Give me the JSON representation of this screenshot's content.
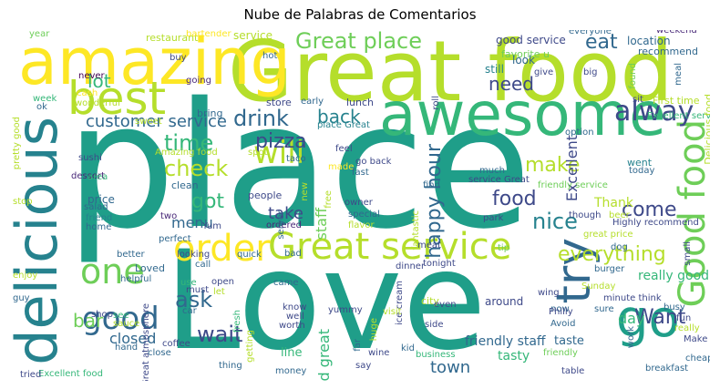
{
  "title": "Nube de Palabras de Comentarios",
  "palette": [
    "#fde725",
    "#b5de2b",
    "#6ece58",
    "#35b779",
    "#1f9e89",
    "#26828e",
    "#31688e",
    "#3e4989",
    "#482878",
    "#440154"
  ],
  "words": [
    {
      "text": "place",
      "color": "#1f9e89"
    },
    {
      "text": "Love",
      "color": "#1f9e89"
    },
    {
      "text": "Great food",
      "color": "#b5de2b"
    },
    {
      "text": "amazing",
      "color": "#fde725"
    },
    {
      "text": "awesome",
      "color": "#35b779"
    },
    {
      "text": "best",
      "color": "#b5de2b"
    },
    {
      "text": "delicious",
      "color": "#26828e"
    },
    {
      "text": "Great service",
      "color": "#b5de2b"
    },
    {
      "text": "order",
      "color": "#fde725"
    },
    {
      "text": "go",
      "color": "#1f9e89"
    },
    {
      "text": "try",
      "color": "#31688e"
    },
    {
      "text": "Good food",
      "color": "#6ece58"
    },
    {
      "text": "one",
      "color": "#6ece58"
    },
    {
      "text": "good",
      "color": "#31688e"
    },
    {
      "text": "alway",
      "color": "#3e4989"
    },
    {
      "text": "Great place",
      "color": "#6ece58"
    },
    {
      "text": "will",
      "color": "#b5de2b"
    },
    {
      "text": "check",
      "color": "#b5de2b"
    },
    {
      "text": "time",
      "color": "#35b779"
    },
    {
      "text": "drink",
      "color": "#31688e"
    },
    {
      "text": "pizza",
      "color": "#3e4989"
    },
    {
      "text": "back",
      "color": "#26828e"
    },
    {
      "text": "customer service",
      "color": "#31688e"
    },
    {
      "text": "eat",
      "color": "#31688e"
    },
    {
      "text": "need",
      "color": "#3e4989"
    },
    {
      "text": "lot",
      "color": "#35b779"
    },
    {
      "text": "got",
      "color": "#35b779"
    },
    {
      "text": "make",
      "color": "#b5de2b"
    },
    {
      "text": "food",
      "color": "#3e4989"
    },
    {
      "text": "come",
      "color": "#3e4989"
    },
    {
      "text": "nice",
      "color": "#26828e"
    },
    {
      "text": "happy hour",
      "color": "#31688e"
    },
    {
      "text": "everything",
      "color": "#b5de2b"
    },
    {
      "text": "Want",
      "color": "#3e4989"
    },
    {
      "text": "ask",
      "color": "#31688e"
    },
    {
      "text": "wait",
      "color": "#3e4989"
    },
    {
      "text": "menu",
      "color": "#31688e"
    },
    {
      "text": "take",
      "color": "#3e4989"
    },
    {
      "text": "staff",
      "color": "#6ece58"
    },
    {
      "text": "bar",
      "color": "#6ece58"
    },
    {
      "text": "day",
      "color": "#35b779"
    },
    {
      "text": "closed",
      "color": "#31688e"
    },
    {
      "text": "town",
      "color": "#31688e"
    },
    {
      "text": "Excellent",
      "color": "#3e4989"
    },
    {
      "text": "Thank",
      "color": "#b5de2b"
    },
    {
      "text": "really good",
      "color": "#35b779"
    },
    {
      "text": "food great",
      "color": "#35b779"
    },
    {
      "text": "friendly staff",
      "color": "#31688e"
    },
    {
      "text": "tasty",
      "color": "#35b779"
    },
    {
      "text": "taste",
      "color": "#31688e"
    },
    {
      "text": "restaurant",
      "color": "#b5de2b"
    },
    {
      "text": "service",
      "color": "#b5de2b"
    },
    {
      "text": "bartender",
      "color": "#fde725"
    },
    {
      "text": "year",
      "color": "#6ece58"
    },
    {
      "text": "good service",
      "color": "#3e4989"
    },
    {
      "text": "favorite u",
      "color": "#6ece58"
    },
    {
      "text": "everyone",
      "color": "#31688e"
    },
    {
      "text": "weekend",
      "color": "#482878"
    },
    {
      "text": "location",
      "color": "#31688e"
    },
    {
      "text": "recommend",
      "color": "#31688e"
    },
    {
      "text": "look",
      "color": "#31688e"
    },
    {
      "text": "still",
      "color": "#26828e"
    },
    {
      "text": "give",
      "color": "#3e4989"
    },
    {
      "text": "big",
      "color": "#3e4989"
    },
    {
      "text": "found",
      "color": "#6ece58"
    },
    {
      "text": "meal",
      "color": "#31688e"
    },
    {
      "text": "First time",
      "color": "#b5de2b"
    },
    {
      "text": "sit",
      "color": "#3e4989"
    },
    {
      "text": "buy",
      "color": "#3e4989"
    },
    {
      "text": "hot",
      "color": "#31688e"
    },
    {
      "text": "never",
      "color": "#440154"
    },
    {
      "text": "cash",
      "color": "#fde725"
    },
    {
      "text": "wonderful",
      "color": "#b5de2b"
    },
    {
      "text": "going",
      "color": "#482878"
    },
    {
      "text": "week",
      "color": "#35b779"
    },
    {
      "text": "ok",
      "color": "#31688e"
    },
    {
      "text": "store",
      "color": "#3e4989"
    },
    {
      "text": "early",
      "color": "#31688e"
    },
    {
      "text": "lunch",
      "color": "#3e4989"
    },
    {
      "text": "place Great",
      "color": "#26828e"
    },
    {
      "text": "roll",
      "color": "#3e4989"
    },
    {
      "text": "bring",
      "color": "#31688e"
    },
    {
      "text": "sweet",
      "color": "#b5de2b"
    },
    {
      "text": "Amazing food",
      "color": "#b5de2b"
    },
    {
      "text": "sushi",
      "color": "#3e4989"
    },
    {
      "text": "dessert",
      "color": "#482878"
    },
    {
      "text": "area",
      "color": "#35b779"
    },
    {
      "text": "clean",
      "color": "#31688e"
    },
    {
      "text": "price",
      "color": "#31688e"
    },
    {
      "text": "salad",
      "color": "#31688e"
    },
    {
      "text": "friend",
      "color": "#26828e"
    },
    {
      "text": "home",
      "color": "#31688e"
    },
    {
      "text": "two",
      "color": "#482878"
    },
    {
      "text": "perfect",
      "color": "#31688e"
    },
    {
      "text": "Yum",
      "color": "#3e4989"
    },
    {
      "text": "spot",
      "color": "#b5de2b"
    },
    {
      "text": "taco",
      "color": "#31688e"
    },
    {
      "text": "people",
      "color": "#3e4989"
    },
    {
      "text": "ordered",
      "color": "#482878"
    },
    {
      "text": "go back",
      "color": "#3e4989"
    },
    {
      "text": "made",
      "color": "#fde725"
    },
    {
      "text": "fast",
      "color": "#31688e"
    },
    {
      "text": "feel",
      "color": "#3e4989"
    },
    {
      "text": "owner",
      "color": "#3e4989"
    },
    {
      "text": "special",
      "color": "#31688e"
    },
    {
      "text": "flavor",
      "color": "#b5de2b"
    },
    {
      "text": "much",
      "color": "#31688e"
    },
    {
      "text": "find",
      "color": "#31688e"
    },
    {
      "text": "park",
      "color": "#3e4989"
    },
    {
      "text": "friendly service",
      "color": "#6ece58"
    },
    {
      "text": "service Great",
      "color": "#3e4989"
    },
    {
      "text": "though",
      "color": "#3e4989"
    },
    {
      "text": "beer",
      "color": "#b5de2b"
    },
    {
      "text": "Highly recommend",
      "color": "#3e4989"
    },
    {
      "text": "today",
      "color": "#31688e"
    },
    {
      "text": "went",
      "color": "#26828e"
    },
    {
      "text": "dog",
      "color": "#31688e"
    },
    {
      "text": "burger",
      "color": "#31688e"
    },
    {
      "text": "great price",
      "color": "#b5de2b"
    },
    {
      "text": "Excellent service",
      "color": "#35b779"
    },
    {
      "text": "Delicious food",
      "color": "#b5de2b"
    },
    {
      "text": "small",
      "color": "#3e4989"
    },
    {
      "text": "now",
      "color": "#31688e"
    },
    {
      "text": "option",
      "color": "#31688e"
    },
    {
      "text": "better",
      "color": "#31688e"
    },
    {
      "text": "Loved",
      "color": "#31688e"
    },
    {
      "text": "helpful",
      "color": "#31688e"
    },
    {
      "text": "looking",
      "color": "#3e4989"
    },
    {
      "text": "quick",
      "color": "#31688e"
    },
    {
      "text": "call",
      "color": "#31688e"
    },
    {
      "text": "bad",
      "color": "#31688e"
    },
    {
      "text": "meat",
      "color": "#3e4989"
    },
    {
      "text": "tip",
      "color": "#6ece58"
    },
    {
      "text": "dinner",
      "color": "#3e4989"
    },
    {
      "text": "ice cream",
      "color": "#3e4989"
    },
    {
      "text": "open",
      "color": "#3e4989"
    },
    {
      "text": "let",
      "color": "#b5de2b"
    },
    {
      "text": "use",
      "color": "#35b779"
    },
    {
      "text": "must",
      "color": "#3e4989"
    },
    {
      "text": "came",
      "color": "#31688e"
    },
    {
      "text": "yummy",
      "color": "#3e4989"
    },
    {
      "text": "city",
      "color": "#b5de2b"
    },
    {
      "text": "even",
      "color": "#3e4989"
    },
    {
      "text": "around",
      "color": "#3e4989"
    },
    {
      "text": "Sunday",
      "color": "#b5de2b"
    },
    {
      "text": "wing",
      "color": "#3e4989"
    },
    {
      "text": "minute think",
      "color": "#3e4989"
    },
    {
      "text": "sure",
      "color": "#31688e"
    },
    {
      "text": "busy",
      "color": "#31688e"
    },
    {
      "text": "Philly",
      "color": "#3e4989"
    },
    {
      "text": "Avoid",
      "color": "#31688e"
    },
    {
      "text": "fun",
      "color": "#3e4989"
    },
    {
      "text": "really",
      "color": "#b5de2b"
    },
    {
      "text": "cheap",
      "color": "#31688e"
    },
    {
      "text": "Make sure",
      "color": "#3e4989"
    },
    {
      "text": "breakfast",
      "color": "#31688e"
    },
    {
      "text": "table",
      "color": "#3e4989"
    },
    {
      "text": "friendly",
      "color": "#6ece58"
    },
    {
      "text": "work",
      "color": "#31688e"
    },
    {
      "text": "shop",
      "color": "#3e4989"
    },
    {
      "text": "see",
      "color": "#35b779"
    },
    {
      "text": "sauce",
      "color": "#b5de2b"
    },
    {
      "text": "hand",
      "color": "#31688e"
    },
    {
      "text": "close",
      "color": "#31688e"
    },
    {
      "text": "car",
      "color": "#31688e"
    },
    {
      "text": "coffee",
      "color": "#3e4989"
    },
    {
      "text": "getting",
      "color": "#b5de2b"
    },
    {
      "text": "fresh",
      "color": "#35b779"
    },
    {
      "text": "worth",
      "color": "#3e4989"
    },
    {
      "text": "well",
      "color": "#3e4989"
    },
    {
      "text": "know",
      "color": "#3e4989"
    },
    {
      "text": "line",
      "color": "#35b779"
    },
    {
      "text": "money",
      "color": "#31688e"
    },
    {
      "text": "visit",
      "color": "#b5de2b"
    },
    {
      "text": "wine",
      "color": "#3e4989"
    },
    {
      "text": "say",
      "color": "#3e4989"
    },
    {
      "text": "kid",
      "color": "#31688e"
    },
    {
      "text": "side",
      "color": "#3e4989"
    },
    {
      "text": "business",
      "color": "#35b779"
    },
    {
      "text": "thing",
      "color": "#31688e"
    },
    {
      "text": "Excellent food",
      "color": "#35b779"
    },
    {
      "text": "tried",
      "color": "#3e4989"
    },
    {
      "text": "enjoy",
      "color": "#b5de2b"
    },
    {
      "text": "guy",
      "color": "#31688e"
    },
    {
      "text": "stop",
      "color": "#b5de2b"
    },
    {
      "text": "pretty good",
      "color": "#b5de2b"
    },
    {
      "text": "Great atmosphere",
      "color": "#3e4989"
    },
    {
      "text": "huge",
      "color": "#b5de2b"
    },
    {
      "text": "far",
      "color": "#31688e"
    },
    {
      "text": "server",
      "color": "#31688e"
    },
    {
      "text": "new",
      "color": "#b5de2b"
    },
    {
      "text": "free",
      "color": "#b5de2b"
    },
    {
      "text": "fantastic",
      "color": "#b5de2b"
    },
    {
      "text": "tonight",
      "color": "#3e4989"
    }
  ]
}
